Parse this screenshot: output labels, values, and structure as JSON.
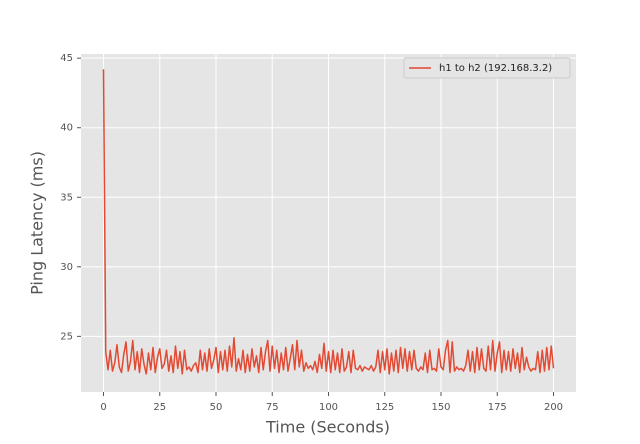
{
  "chart_data": {
    "type": "line",
    "xlabel": "Time (Seconds)",
    "ylabel": "Ping Latency (ms)",
    "x": [
      0,
      1,
      2,
      3,
      4,
      5,
      6,
      7,
      8,
      9,
      10,
      11,
      12,
      13,
      14,
      15,
      16,
      17,
      18,
      19,
      20,
      21,
      22,
      23,
      24,
      25,
      26,
      27,
      28,
      29,
      30,
      31,
      32,
      33,
      34,
      35,
      36,
      37,
      38,
      39,
      40,
      41,
      42,
      43,
      44,
      45,
      46,
      47,
      48,
      49,
      50,
      51,
      52,
      53,
      54,
      55,
      56,
      57,
      58,
      59,
      60,
      61,
      62,
      63,
      64,
      65,
      66,
      67,
      68,
      69,
      70,
      71,
      72,
      73,
      74,
      75,
      76,
      77,
      78,
      79,
      80,
      81,
      82,
      83,
      84,
      85,
      86,
      87,
      88,
      89,
      90,
      91,
      92,
      93,
      94,
      95,
      96,
      97,
      98,
      99,
      100,
      101,
      102,
      103,
      104,
      105,
      106,
      107,
      108,
      109,
      110,
      111,
      112,
      113,
      114,
      115,
      116,
      117,
      118,
      119,
      120,
      121,
      122,
      123,
      124,
      125,
      126,
      127,
      128,
      129,
      130,
      131,
      132,
      133,
      134,
      135,
      136,
      137,
      138,
      139,
      140,
      141,
      142,
      143,
      144,
      145,
      146,
      147,
      148,
      149,
      150,
      151,
      152,
      153,
      154,
      155,
      156,
      157,
      158,
      159,
      160,
      161,
      162,
      163,
      164,
      165,
      166,
      167,
      168,
      169,
      170,
      171,
      172,
      173,
      174,
      175,
      176,
      177,
      178,
      179,
      180,
      181,
      182,
      183,
      184,
      185,
      186,
      187,
      188,
      189,
      190,
      191,
      192,
      193,
      194,
      195,
      196,
      197,
      198,
      199,
      200
    ],
    "series": [
      {
        "name": "h1 to h2 (192.168.3.2)",
        "color": "#E24A33",
        "values": [
          44.2,
          23.9,
          22.6,
          24.0,
          22.5,
          23.1,
          24.4,
          22.8,
          22.4,
          23.7,
          24.6,
          22.5,
          23.2,
          24.7,
          22.6,
          23.9,
          22.4,
          24.1,
          23.0,
          22.3,
          23.8,
          22.6,
          24.2,
          22.4,
          23.5,
          24.1,
          22.7,
          23.0,
          24.0,
          22.5,
          23.6,
          22.4,
          24.3,
          22.7,
          23.9,
          22.3,
          24.0,
          22.6,
          22.8,
          22.5,
          22.9,
          23.1,
          22.4,
          24.0,
          22.6,
          23.8,
          22.5,
          24.1,
          22.7,
          23.3,
          24.2,
          22.4,
          23.9,
          22.6,
          24.0,
          22.5,
          24.3,
          22.8,
          24.9,
          22.5,
          23.4,
          22.6,
          24.0,
          22.4,
          23.7,
          22.5,
          24.1,
          22.8,
          23.6,
          22.4,
          24.2,
          22.6,
          23.9,
          24.7,
          22.5,
          24.3,
          22.7,
          24.0,
          22.4,
          23.8,
          22.6,
          24.2,
          22.5,
          23.4,
          24.4,
          22.6,
          24.7,
          22.8,
          24.0,
          22.5,
          23.1,
          22.7,
          22.9,
          22.6,
          23.2,
          22.4,
          23.7,
          22.7,
          24.5,
          22.5,
          23.9,
          22.4,
          24.0,
          22.6,
          23.8,
          22.4,
          24.1,
          22.5,
          22.8,
          23.9,
          22.4,
          24.0,
          22.7,
          22.6,
          22.9,
          22.5,
          22.8,
          22.7,
          22.6,
          22.9,
          22.5,
          22.8,
          24.0,
          22.4,
          23.9,
          22.6,
          24.1,
          22.3,
          23.8,
          22.5,
          24.0,
          22.4,
          24.2,
          22.7,
          24.1,
          22.5,
          23.9,
          22.6,
          24.0,
          22.7,
          22.5,
          22.8,
          22.6,
          23.8,
          22.4,
          24.0,
          22.6,
          22.7,
          22.5,
          24.1,
          22.8,
          22.6,
          24.0,
          24.7,
          22.4,
          24.6,
          22.5,
          22.8,
          22.6,
          22.7,
          22.5,
          22.9,
          24.0,
          22.5,
          23.9,
          22.4,
          24.2,
          22.6,
          24.1,
          22.7,
          22.5,
          24.3,
          22.6,
          24.7,
          22.5,
          23.8,
          24.6,
          22.4,
          24.0,
          22.6,
          23.9,
          22.5,
          24.1,
          22.7,
          23.8,
          22.4,
          24.2,
          22.6,
          23.5,
          22.8,
          22.5,
          22.7,
          22.6,
          23.9,
          22.4,
          24.0,
          22.5,
          24.2,
          22.6,
          24.3,
          22.7
        ]
      }
    ],
    "xlim": [
      -10,
      210
    ],
    "ylim": [
      21.0,
      45.3
    ],
    "xticks": [
      0,
      25,
      50,
      75,
      100,
      125,
      150,
      175,
      200
    ],
    "yticks": [
      25,
      30,
      35,
      40,
      45
    ],
    "grid": true,
    "legend": "upper right"
  }
}
